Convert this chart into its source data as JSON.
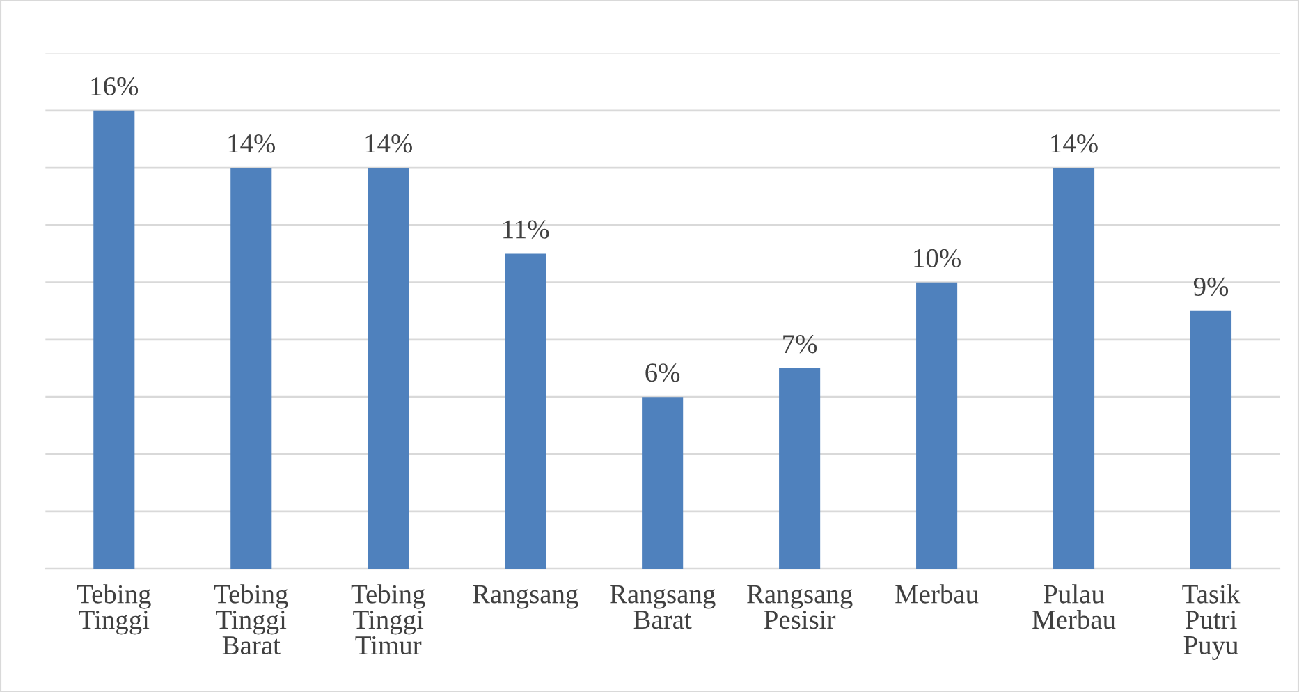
{
  "chart_data": {
    "type": "bar",
    "categories": [
      "Tebing\nTinggi",
      "Tebing\nTinggi\nBarat",
      "Tebing\nTinggi\nTimur",
      "Rangsang",
      "Rangsang\nBarat",
      "Rangsang\nPesisir",
      "Merbau",
      "Pulau\nMerbau",
      "Tasik\nPutri\nPuyu"
    ],
    "values": [
      16,
      14,
      14,
      11,
      6,
      7,
      10,
      14,
      9
    ],
    "value_labels": [
      "16%",
      "14%",
      "14%",
      "11%",
      "6%",
      "7%",
      "10%",
      "14%",
      "9%"
    ],
    "color": "#4f81bd",
    "ylim": [
      0,
      18
    ],
    "yticks": [
      {
        "value": 0,
        "label": null
      },
      {
        "value": 2,
        "label": null
      },
      {
        "value": 4,
        "label": null
      },
      {
        "value": 6,
        "label": null
      },
      {
        "value": 8,
        "label": null
      },
      {
        "value": 10,
        "label": null
      },
      {
        "value": 12,
        "label": null
      },
      {
        "value": 14,
        "label": null
      },
      {
        "value": 16,
        "label": null
      },
      {
        "value": 18,
        "label": null
      }
    ],
    "grid": "y",
    "tick_labels": "x",
    "legend": false
  }
}
